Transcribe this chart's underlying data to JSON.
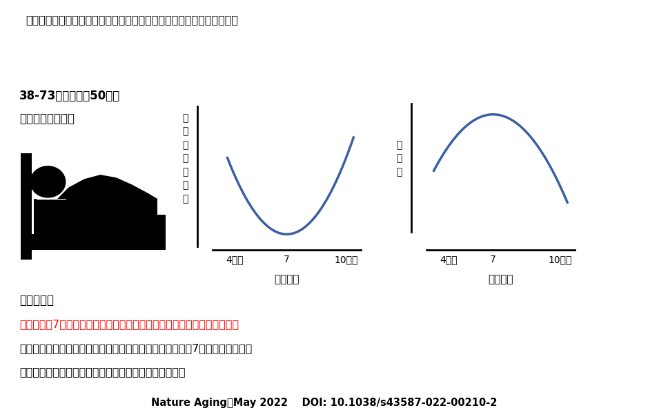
{
  "top_text": "成人の睡眠時間、精神疾患、認知機能の関連を調べた英国の研究です。",
  "left_label1": "38-73歳の成人約50万人",
  "left_label2": "の睡眠時間を調査",
  "chart1_ylabel": "認\n知\n機\n能\n低\n下\n度",
  "chart1_xlabel": "睡眠時間",
  "chart1_xticks": [
    "4以下",
    "7",
    "10以上"
  ],
  "chart2_ylabel": "幸\n福\n感",
  "chart2_xlabel": "睡眠時間",
  "chart2_xticks": [
    "4以下",
    "7",
    "10以上"
  ],
  "point_header": "ポイント：",
  "point_red": "睡眠時間が7時間程度の高齢者は認知機能の低下が一番低い結果でした。",
  "point_black1": "また幸福感は一番高かったです。脳を調べると睡眠時間が7時間程度の人は、",
  "point_black2": "脳の構造にも大きな問題が少ないことがわかりました。",
  "footer": "Nature Aging・May 2022    DOI: 10.1038/s43587-022-00210-2",
  "curve_color": "#3B5FA0",
  "background_color": "#ffffff"
}
